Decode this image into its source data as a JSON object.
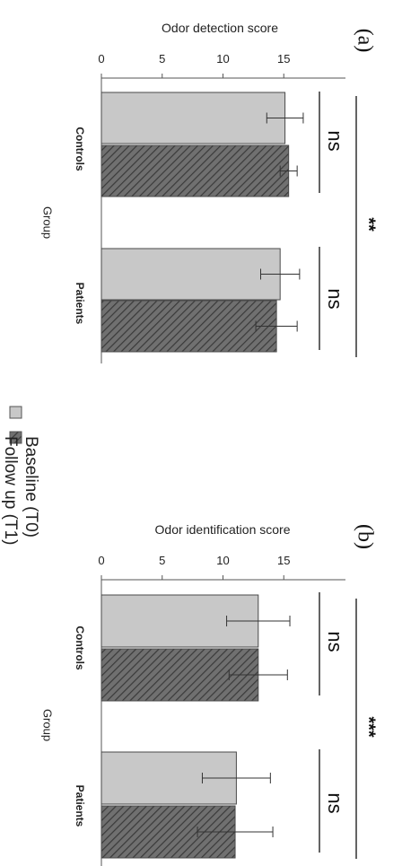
{
  "chart_data": [
    {
      "type": "bar",
      "panel_label": "(a)",
      "title": "Odor detection score",
      "xlabel": "Group",
      "categories": [
        "Controls",
        "Patients"
      ],
      "value_ticks": [
        "0",
        "5",
        "10",
        "15"
      ],
      "value_lim": [
        0,
        20
      ],
      "series": [
        {
          "name": "Baseline (T0)",
          "values": [
            15.1,
            14.7
          ],
          "errors": [
            1.5,
            1.6
          ]
        },
        {
          "name": "Follow up (T1)",
          "values": [
            15.4,
            14.4
          ],
          "errors": [
            0.7,
            1.7
          ]
        }
      ],
      "within_group_annotations": [
        "ns",
        "ns"
      ],
      "between_group_annotation": "**"
    },
    {
      "type": "bar",
      "panel_label": "(b)",
      "title": "Odor identification score",
      "xlabel": "Group",
      "categories": [
        "Controls",
        "Patients"
      ],
      "value_ticks": [
        "0",
        "5",
        "10",
        "15"
      ],
      "value_lim": [
        0,
        20
      ],
      "series": [
        {
          "name": "Baseline (T0)",
          "values": [
            12.9,
            11.1
          ],
          "errors": [
            2.6,
            2.8
          ]
        },
        {
          "name": "Follow up (T1)",
          "values": [
            12.9,
            11.0
          ],
          "errors": [
            2.4,
            3.1
          ]
        }
      ],
      "within_group_annotations": [
        "ns",
        "ns"
      ],
      "between_group_annotation": "***"
    }
  ],
  "legend": {
    "placement": "middle",
    "entries": [
      {
        "label": "Baseline (T0)",
        "color": "#c8c8c8",
        "pattern": "solid"
      },
      {
        "label": "Follow up (T1)",
        "color": "#707070",
        "pattern": "hatched"
      }
    ]
  },
  "colors": {
    "baseline": "#c8c8c8",
    "followup": "#707070",
    "hatch": "#3a3a3a",
    "axis": "#555555"
  }
}
